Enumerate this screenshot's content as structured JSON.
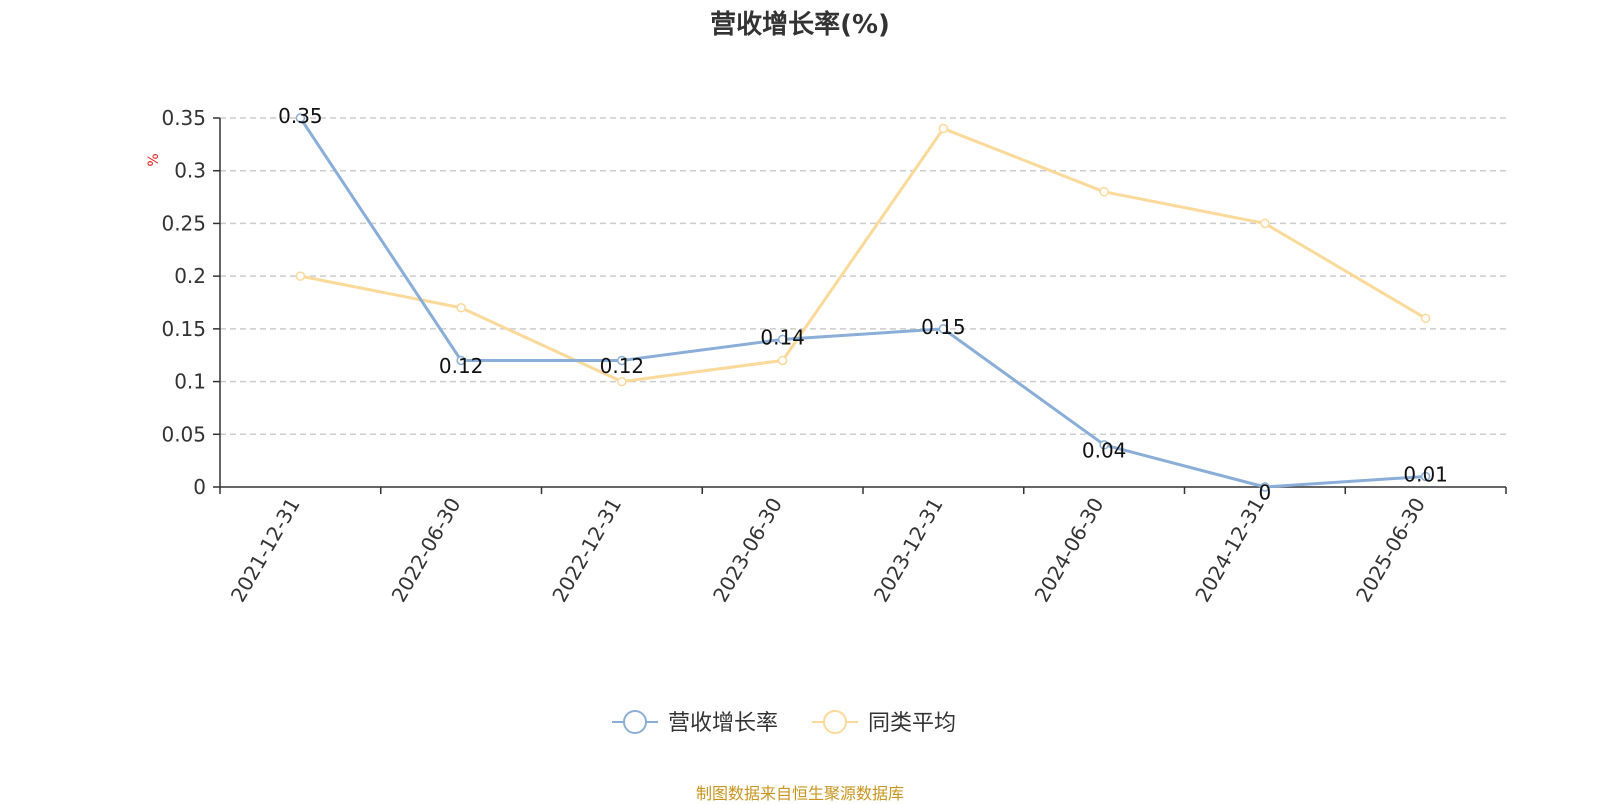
{
  "chart_data": {
    "type": "line",
    "title": "营收增长率(%)",
    "ylabel": "%",
    "xlabel": "",
    "ylim": [
      0,
      0.35
    ],
    "yticks": [
      "0",
      "0.05",
      "0.1",
      "0.15",
      "0.2",
      "0.25",
      "0.3",
      "0.35"
    ],
    "ytick_values": [
      0,
      0.05,
      0.1,
      0.15,
      0.2,
      0.25,
      0.3,
      0.35
    ],
    "categories": [
      "2021-12-31",
      "2022-06-30",
      "2022-12-31",
      "2023-06-30",
      "2023-12-31",
      "2024-06-30",
      "2024-12-31",
      "2025-06-30"
    ],
    "grid": true,
    "legend_position": "bottom-center",
    "series": [
      {
        "name": "营收增长率",
        "color": "#8aaed8",
        "values": [
          0.35,
          0.12,
          0.12,
          0.14,
          0.15,
          0.04,
          0,
          0.01
        ],
        "labels": [
          "0.35",
          "0.12",
          "0.12",
          "0.14",
          "0.15",
          "0.04",
          "0",
          "0.01"
        ]
      },
      {
        "name": "同类平均",
        "color": "#fbd99a",
        "values": [
          0.2,
          0.17,
          0.1,
          0.12,
          0.34,
          0.28,
          0.25,
          0.16
        ]
      }
    ],
    "source": "制图数据来自恒生聚源数据库"
  }
}
